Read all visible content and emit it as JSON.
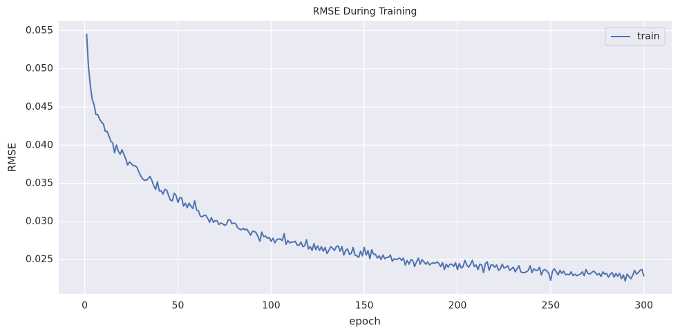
{
  "chart_data": {
    "type": "line",
    "title": "RMSE During Training",
    "xlabel": "epoch",
    "ylabel": "RMSE",
    "x": [
      1,
      2,
      3,
      4,
      5,
      6,
      7,
      8,
      9,
      10,
      11,
      12,
      13,
      14,
      15,
      16,
      17,
      18,
      19,
      20,
      21,
      22,
      23,
      24,
      25,
      26,
      27,
      28,
      29,
      30,
      31,
      32,
      33,
      34,
      35,
      36,
      37,
      38,
      39,
      40,
      41,
      42,
      43,
      44,
      45,
      46,
      47,
      48,
      49,
      50,
      51,
      52,
      53,
      54,
      55,
      56,
      57,
      58,
      59,
      60,
      61,
      62,
      63,
      64,
      65,
      66,
      67,
      68,
      69,
      70,
      71,
      72,
      73,
      74,
      75,
      76,
      77,
      78,
      79,
      80,
      81,
      82,
      83,
      84,
      85,
      86,
      87,
      88,
      89,
      90,
      91,
      92,
      93,
      94,
      95,
      96,
      97,
      98,
      99,
      100,
      101,
      102,
      103,
      104,
      105,
      106,
      107,
      108,
      109,
      110,
      111,
      112,
      113,
      114,
      115,
      116,
      117,
      118,
      119,
      120,
      121,
      122,
      123,
      124,
      125,
      126,
      127,
      128,
      129,
      130,
      131,
      132,
      133,
      134,
      135,
      136,
      137,
      138,
      139,
      140,
      141,
      142,
      143,
      144,
      145,
      146,
      147,
      148,
      149,
      150,
      151,
      152,
      153,
      154,
      155,
      156,
      157,
      158,
      159,
      160,
      161,
      162,
      163,
      164,
      165,
      166,
      167,
      168,
      169,
      170,
      171,
      172,
      173,
      174,
      175,
      176,
      177,
      178,
      179,
      180,
      181,
      182,
      183,
      184,
      185,
      186,
      187,
      188,
      189,
      190,
      191,
      192,
      193,
      194,
      195,
      196,
      197,
      198,
      199,
      200,
      201,
      202,
      203,
      204,
      205,
      206,
      207,
      208,
      209,
      210,
      211,
      212,
      213,
      214,
      215,
      216,
      217,
      218,
      219,
      220,
      221,
      222,
      223,
      224,
      225,
      226,
      227,
      228,
      229,
      230,
      231,
      232,
      233,
      234,
      235,
      236,
      237,
      238,
      239,
      240,
      241,
      242,
      243,
      244,
      245,
      246,
      247,
      248,
      249,
      250,
      251,
      252,
      253,
      254,
      255,
      256,
      257,
      258,
      259,
      260,
      261,
      262,
      263,
      264,
      265,
      266,
      267,
      268,
      269,
      270,
      271,
      272,
      273,
      274,
      275,
      276,
      277,
      278,
      279,
      280,
      281,
      282,
      283,
      284,
      285,
      286,
      287,
      288,
      289,
      290,
      291,
      292,
      293,
      294,
      295,
      296,
      297,
      298,
      299,
      300
    ],
    "series": [
      {
        "name": "train",
        "color": "#4c72b0",
        "values": [
          0.0546,
          0.0503,
          0.0478,
          0.046,
          0.0453,
          0.044,
          0.044,
          0.0434,
          0.043,
          0.0428,
          0.0418,
          0.0418,
          0.0412,
          0.0405,
          0.0403,
          0.039,
          0.04,
          0.0392,
          0.0388,
          0.0394,
          0.0388,
          0.0382,
          0.0374,
          0.0378,
          0.0376,
          0.0373,
          0.0373,
          0.0371,
          0.0365,
          0.036,
          0.0356,
          0.0354,
          0.0354,
          0.0356,
          0.0359,
          0.0354,
          0.0347,
          0.0342,
          0.0352,
          0.034,
          0.034,
          0.0336,
          0.0342,
          0.0341,
          0.0334,
          0.0328,
          0.0327,
          0.0337,
          0.0334,
          0.0325,
          0.0331,
          0.0331,
          0.032,
          0.0324,
          0.0318,
          0.0324,
          0.032,
          0.0317,
          0.0327,
          0.0315,
          0.0314,
          0.0307,
          0.0306,
          0.0308,
          0.0308,
          0.0304,
          0.0299,
          0.0305,
          0.0299,
          0.0301,
          0.0301,
          0.0296,
          0.0298,
          0.0297,
          0.0295,
          0.0296,
          0.0302,
          0.0302,
          0.0297,
          0.0298,
          0.0297,
          0.0292,
          0.029,
          0.0289,
          0.0291,
          0.0289,
          0.029,
          0.0286,
          0.0282,
          0.0287,
          0.0287,
          0.0285,
          0.028,
          0.0274,
          0.0286,
          0.028,
          0.0281,
          0.0278,
          0.0279,
          0.0274,
          0.0278,
          0.0272,
          0.0276,
          0.0277,
          0.0277,
          0.0275,
          0.0284,
          0.027,
          0.0275,
          0.0272,
          0.0273,
          0.0273,
          0.0274,
          0.0269,
          0.0269,
          0.0273,
          0.0267,
          0.0268,
          0.0276,
          0.0264,
          0.0267,
          0.0262,
          0.0271,
          0.0263,
          0.0268,
          0.0262,
          0.0267,
          0.0261,
          0.0266,
          0.0258,
          0.0262,
          0.0267,
          0.0265,
          0.0262,
          0.0267,
          0.0268,
          0.0261,
          0.0267,
          0.0256,
          0.0262,
          0.0264,
          0.0257,
          0.0258,
          0.0266,
          0.0256,
          0.0255,
          0.0253,
          0.0261,
          0.0255,
          0.0266,
          0.0256,
          0.0262,
          0.0251,
          0.0263,
          0.0257,
          0.0257,
          0.0252,
          0.0255,
          0.025,
          0.0256,
          0.0251,
          0.0253,
          0.0253,
          0.0256,
          0.0248,
          0.0251,
          0.025,
          0.0251,
          0.0252,
          0.0249,
          0.0252,
          0.0243,
          0.0249,
          0.0244,
          0.025,
          0.0249,
          0.0241,
          0.0247,
          0.0252,
          0.0244,
          0.025,
          0.0247,
          0.0244,
          0.0247,
          0.0243,
          0.0245,
          0.0246,
          0.0245,
          0.0247,
          0.0245,
          0.0241,
          0.0246,
          0.0237,
          0.0244,
          0.024,
          0.0244,
          0.0244,
          0.0241,
          0.0246,
          0.0237,
          0.0245,
          0.0239,
          0.0241,
          0.0249,
          0.0243,
          0.024,
          0.0244,
          0.0249,
          0.0241,
          0.0243,
          0.0237,
          0.0244,
          0.0243,
          0.0233,
          0.0245,
          0.0247,
          0.0236,
          0.0243,
          0.0243,
          0.024,
          0.0243,
          0.0236,
          0.0238,
          0.0244,
          0.0239,
          0.024,
          0.0242,
          0.0236,
          0.0238,
          0.024,
          0.0234,
          0.0238,
          0.0242,
          0.0234,
          0.0233,
          0.0233,
          0.0234,
          0.0236,
          0.0242,
          0.0233,
          0.0238,
          0.0236,
          0.0236,
          0.024,
          0.023,
          0.0236,
          0.0237,
          0.0235,
          0.0232,
          0.0223,
          0.0235,
          0.0238,
          0.0234,
          0.023,
          0.0236,
          0.0232,
          0.0235,
          0.023,
          0.0231,
          0.023,
          0.0234,
          0.0229,
          0.0231,
          0.0229,
          0.023,
          0.0231,
          0.0234,
          0.0229,
          0.0237,
          0.0232,
          0.0231,
          0.0233,
          0.0235,
          0.0233,
          0.023,
          0.0232,
          0.0228,
          0.0234,
          0.0231,
          0.0232,
          0.0227,
          0.0231,
          0.0233,
          0.0227,
          0.0232,
          0.0228,
          0.0232,
          0.0225,
          0.023,
          0.0222,
          0.0231,
          0.0228,
          0.0225,
          0.0229,
          0.0236,
          0.0231,
          0.0233,
          0.0236,
          0.0237,
          0.0228
        ]
      }
    ],
    "xlim": [
      -13.95,
      314.95
    ],
    "xticks": [
      0,
      50,
      100,
      150,
      200,
      250,
      300
    ],
    "ylim": [
      0.0205,
      0.0563
    ],
    "yticks": [
      0.025,
      {
        "value": 0.03,
        "label": "0.030"
      },
      0.035,
      {
        "value": 0.04,
        "label": "0.040"
      },
      0.045,
      {
        "value": 0.05,
        "label": "0.050"
      },
      0.055
    ],
    "grid": true,
    "legend": "upper right"
  }
}
